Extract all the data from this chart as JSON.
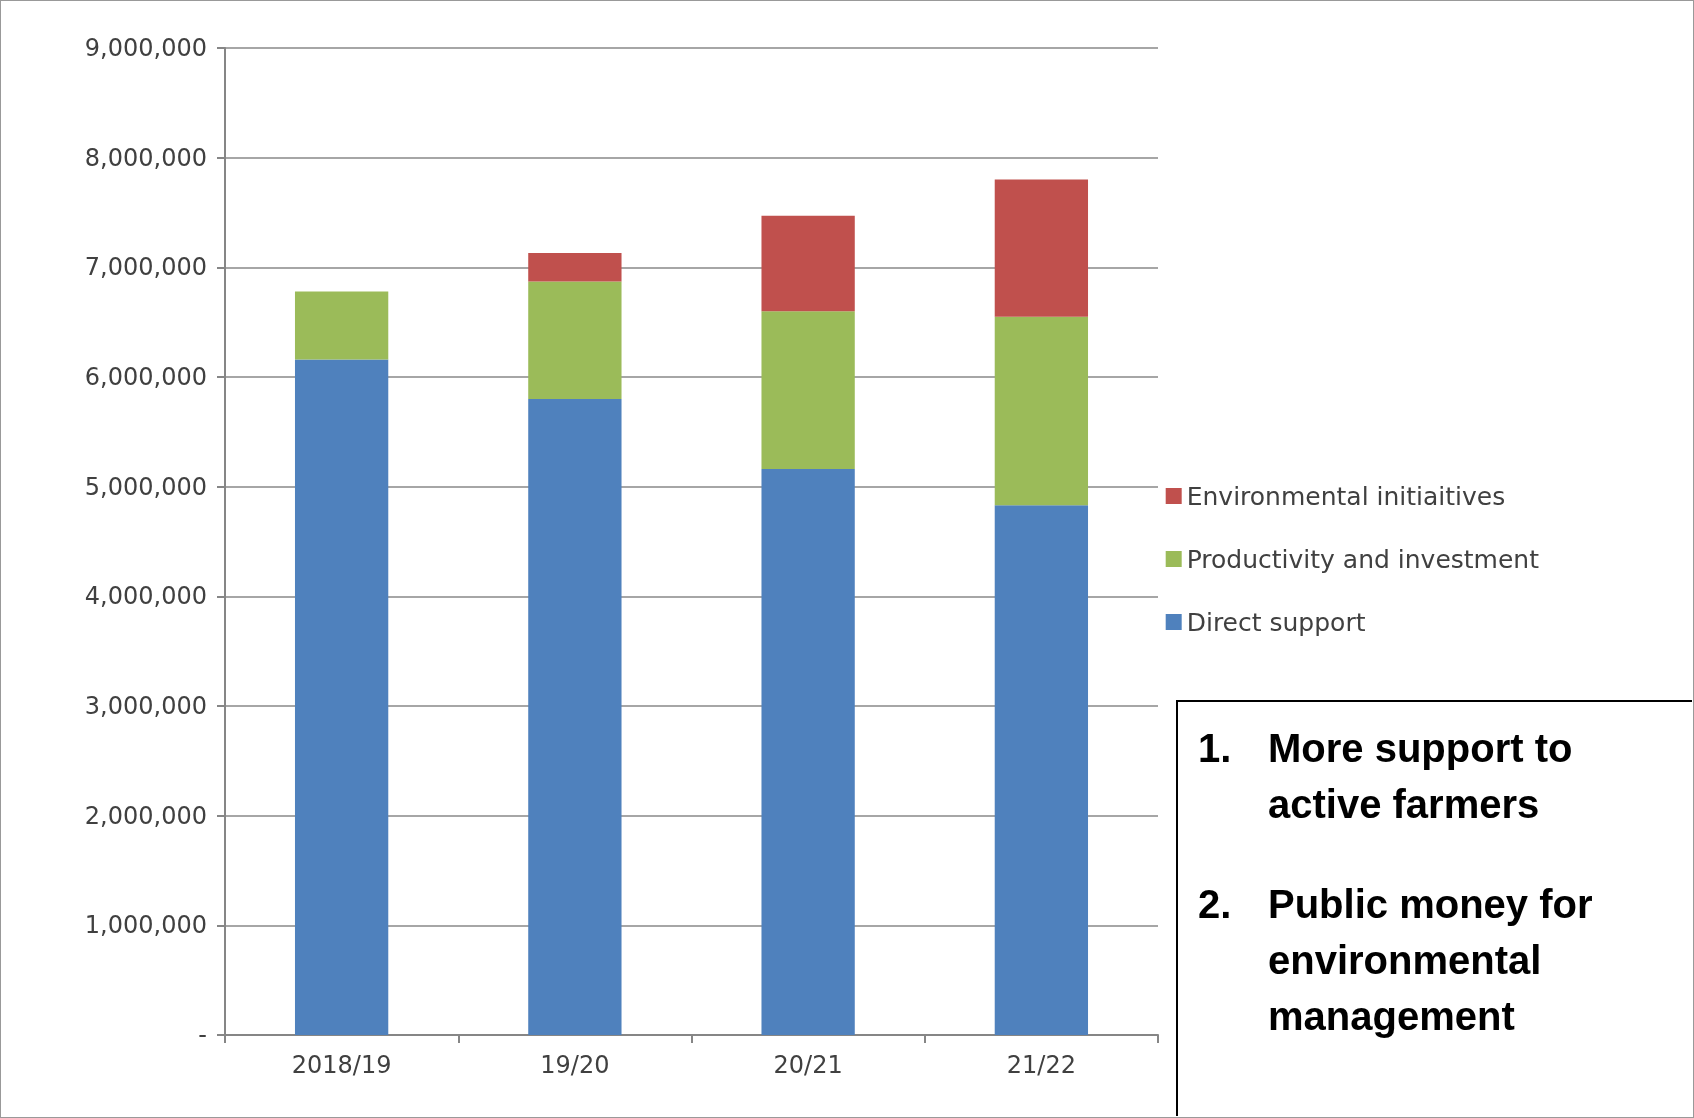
{
  "chart_data": {
    "type": "bar",
    "stacked": true,
    "categories": [
      "2018/19",
      "19/20",
      "20/21",
      "21/22"
    ],
    "series": [
      {
        "name": "Direct support",
        "color": "#4f81bd",
        "values": [
          6160000,
          5800000,
          5160000,
          4830000
        ]
      },
      {
        "name": "Productivity and investment",
        "color": "#9bbb59",
        "values": [
          620000,
          1070000,
          1440000,
          1720000
        ]
      },
      {
        "name": "Environmental initiaitives",
        "color": "#c0504d",
        "values": [
          null,
          260000,
          870000,
          1250000
        ]
      }
    ],
    "ylim": [
      0,
      9000000
    ],
    "yticks": [
      {
        "value": 0,
        "label": "-"
      },
      {
        "value": 1000000,
        "label": "1,000,000"
      },
      {
        "value": 2000000,
        "label": "2,000,000"
      },
      {
        "value": 3000000,
        "label": "3,000,000"
      },
      {
        "value": 4000000,
        "label": "4,000,000"
      },
      {
        "value": 5000000,
        "label": "5,000,000"
      },
      {
        "value": 6000000,
        "label": "6,000,000"
      },
      {
        "value": 7000000,
        "label": "7,000,000"
      },
      {
        "value": 8000000,
        "label": "8,000,000"
      },
      {
        "value": 9000000,
        "label": "9,000,000"
      }
    ],
    "grid": "y",
    "legend": "right",
    "annotations": [
      "1. More support to active farmers",
      "2. Public money for environmental management"
    ]
  }
}
